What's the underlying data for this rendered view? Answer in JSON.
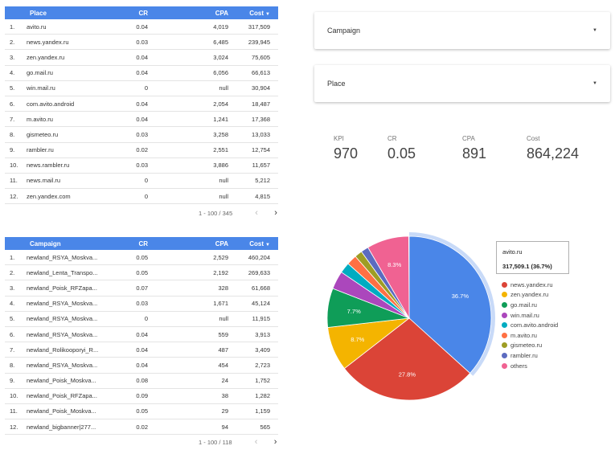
{
  "place_table": {
    "headers": {
      "name": "Place",
      "cr": "CR",
      "cpa": "CPA",
      "cost": "Cost"
    },
    "sort_arrow": "▼",
    "rows": [
      {
        "num": "1.",
        "name": "avito.ru",
        "cr": "0.04",
        "cpa": "4,019",
        "cost": "317,509"
      },
      {
        "num": "2.",
        "name": "news.yandex.ru",
        "cr": "0.03",
        "cpa": "6,485",
        "cost": "239,945"
      },
      {
        "num": "3.",
        "name": "zen.yandex.ru",
        "cr": "0.04",
        "cpa": "3,024",
        "cost": "75,605"
      },
      {
        "num": "4.",
        "name": "go.mail.ru",
        "cr": "0.04",
        "cpa": "6,056",
        "cost": "66,613"
      },
      {
        "num": "5.",
        "name": "win.mail.ru",
        "cr": "0",
        "cpa": "null",
        "cost": "30,904"
      },
      {
        "num": "6.",
        "name": "com.avito.android",
        "cr": "0.04",
        "cpa": "2,054",
        "cost": "18,487"
      },
      {
        "num": "7.",
        "name": "m.avito.ru",
        "cr": "0.04",
        "cpa": "1,241",
        "cost": "17,368"
      },
      {
        "num": "8.",
        "name": "gismeteo.ru",
        "cr": "0.03",
        "cpa": "3,258",
        "cost": "13,033"
      },
      {
        "num": "9.",
        "name": "rambler.ru",
        "cr": "0.02",
        "cpa": "2,551",
        "cost": "12,754"
      },
      {
        "num": "10.",
        "name": "news.rambler.ru",
        "cr": "0.03",
        "cpa": "3,886",
        "cost": "11,657"
      },
      {
        "num": "11.",
        "name": "news.mail.ru",
        "cr": "0",
        "cpa": "null",
        "cost": "5,212"
      },
      {
        "num": "12.",
        "name": "zen.yandex.com",
        "cr": "0",
        "cpa": "null",
        "cost": "4,815"
      }
    ],
    "pager": {
      "range": "1 - 100 / 345",
      "prev": "‹",
      "next": "›"
    }
  },
  "campaign_table": {
    "headers": {
      "name": "Campaign",
      "cr": "CR",
      "cpa": "CPA",
      "cost": "Cost"
    },
    "sort_arrow": "▼",
    "rows": [
      {
        "num": "1.",
        "name": "newland_RSYA_Moskva...",
        "cr": "0.05",
        "cpa": "2,529",
        "cost": "460,204"
      },
      {
        "num": "2.",
        "name": "newland_Lenta_Transpo...",
        "cr": "0.05",
        "cpa": "2,192",
        "cost": "269,633"
      },
      {
        "num": "3.",
        "name": "newland_Poisk_RFZapa...",
        "cr": "0.07",
        "cpa": "328",
        "cost": "61,668"
      },
      {
        "num": "4.",
        "name": "newland_RSYA_Moskva...",
        "cr": "0.03",
        "cpa": "1,671",
        "cost": "45,124"
      },
      {
        "num": "5.",
        "name": "newland_RSYA_Moskva...",
        "cr": "0",
        "cpa": "null",
        "cost": "11,915"
      },
      {
        "num": "6.",
        "name": "newland_RSYA_Moskva...",
        "cr": "0.04",
        "cpa": "559",
        "cost": "3,913"
      },
      {
        "num": "7.",
        "name": "newland_Rolikooporyi_R...",
        "cr": "0.04",
        "cpa": "487",
        "cost": "3,409"
      },
      {
        "num": "8.",
        "name": "newland_RSYA_Moskva...",
        "cr": "0.04",
        "cpa": "454",
        "cost": "2,723"
      },
      {
        "num": "9.",
        "name": "newland_Poisk_Moskva...",
        "cr": "0.08",
        "cpa": "24",
        "cost": "1,752"
      },
      {
        "num": "10.",
        "name": "newland_Poisk_RFZapa...",
        "cr": "0.09",
        "cpa": "38",
        "cost": "1,282"
      },
      {
        "num": "11.",
        "name": "newland_Poisk_Moskva...",
        "cr": "0.05",
        "cpa": "29",
        "cost": "1,159"
      },
      {
        "num": "12.",
        "name": "newland_bigbanner|277...",
        "cr": "0.02",
        "cpa": "94",
        "cost": "565"
      }
    ],
    "pager": {
      "range": "1 - 100 / 118",
      "prev": "‹",
      "next": "›"
    }
  },
  "filters": {
    "campaign": {
      "label": "Campaign",
      "caret": "▼"
    },
    "place": {
      "label": "Place",
      "caret": "▼"
    }
  },
  "scorecards": [
    {
      "label": "KPI",
      "value": "970"
    },
    {
      "label": "CR",
      "value": "0.05"
    },
    {
      "label": "CPA",
      "value": "891"
    },
    {
      "label": "Cost",
      "value": "864,224"
    }
  ],
  "tooltip": {
    "title": "avito.ru",
    "value": "317,509.1 (36.7%)"
  },
  "chart_data": {
    "type": "pie",
    "slices": [
      {
        "name": "avito.ru",
        "percent": 36.7,
        "label": "36.7%",
        "color": "#4a86e8",
        "highlighted": true,
        "in_legend": false
      },
      {
        "name": "news.yandex.ru",
        "percent": 27.8,
        "label": "27.8%",
        "color": "#db4437",
        "in_legend": true
      },
      {
        "name": "zen.yandex.ru",
        "percent": 8.7,
        "label": "8.7%",
        "color": "#f4b400",
        "in_legend": true
      },
      {
        "name": "go.mail.ru",
        "percent": 7.7,
        "label": "7.7%",
        "color": "#0f9d58",
        "in_legend": true
      },
      {
        "name": "win.mail.ru",
        "percent": 3.6,
        "label": "",
        "color": "#ab47bc",
        "in_legend": true
      },
      {
        "name": "com.avito.android",
        "percent": 2.1,
        "label": "",
        "color": "#00acc1",
        "in_legend": true
      },
      {
        "name": "m.avito.ru",
        "percent": 2.0,
        "label": "",
        "color": "#ff7043",
        "in_legend": true
      },
      {
        "name": "gismeteo.ru",
        "percent": 1.5,
        "label": "",
        "color": "#9e9d24",
        "in_legend": true
      },
      {
        "name": "rambler.ru",
        "percent": 1.5,
        "label": "",
        "color": "#5c6bc0",
        "in_legend": true
      },
      {
        "name": "others",
        "percent": 8.3,
        "label": "8.3%",
        "color": "#f06292",
        "in_legend": true
      }
    ]
  }
}
